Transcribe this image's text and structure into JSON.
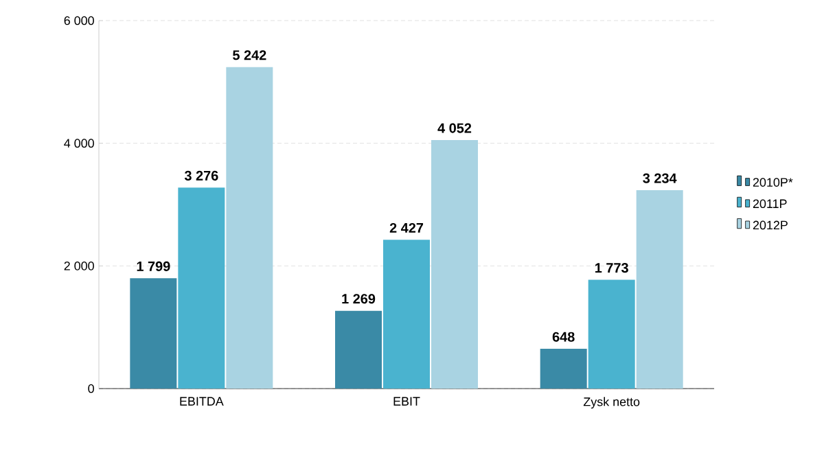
{
  "chart_data": {
    "type": "bar",
    "categories": [
      "EBITDA",
      "EBIT",
      "Zysk netto"
    ],
    "series": [
      {
        "name": "2010P*",
        "color": "#3a8aa6",
        "values": [
          1799,
          1269,
          648
        ],
        "value_labels": [
          "1 799",
          "1 269",
          "648"
        ]
      },
      {
        "name": "2011P",
        "color": "#4ab3cf",
        "values": [
          3276,
          2427,
          1773
        ],
        "value_labels": [
          "3 276",
          "2 427",
          "1 773"
        ]
      },
      {
        "name": "2012P",
        "color": "#a9d3e2",
        "values": [
          5242,
          4052,
          3234
        ],
        "value_labels": [
          "5 242",
          "4 052",
          "3 234"
        ]
      }
    ],
    "ylim": [
      0,
      6000
    ],
    "yticks": [
      {
        "value": 0,
        "label": "0"
      },
      {
        "value": 2000,
        "label": "2 000"
      },
      {
        "value": 4000,
        "label": "4 000"
      },
      {
        "value": 6000,
        "label": "6 000"
      }
    ],
    "grid": "y",
    "legend": "right"
  }
}
